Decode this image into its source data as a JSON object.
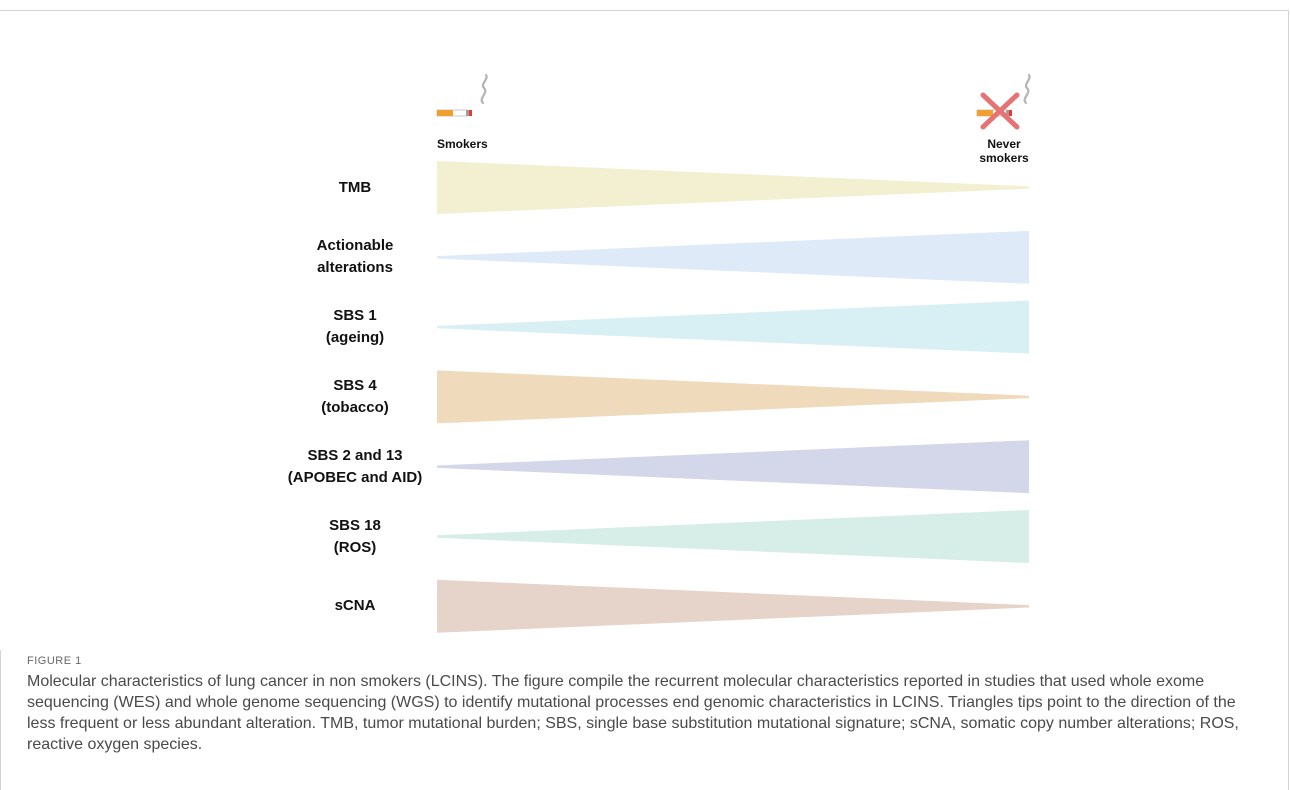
{
  "header": {
    "smokers_label": "Smokers",
    "never_label_line1": "Never",
    "never_label_line2": "smokers"
  },
  "rows": [
    {
      "line1": "TMB",
      "line2": "",
      "color": "#f3f0d2",
      "wide_side": "left"
    },
    {
      "line1": "Actionable",
      "line2": "alterations",
      "color": "#deeaf7",
      "wide_side": "right"
    },
    {
      "line1": "SBS 1",
      "line2": "(ageing)",
      "color": "#d8eff3",
      "wide_side": "right"
    },
    {
      "line1": "SBS 4",
      "line2": "(tobacco)",
      "color": "#efdabc",
      "wide_side": "left"
    },
    {
      "line1": "SBS 2 and 13",
      "line2": "(APOBEC and AID)",
      "color": "#d4d6ea",
      "wide_side": "right"
    },
    {
      "line1": "SBS 18",
      "line2": "(ROS)",
      "color": "#d6ede8",
      "wide_side": "right"
    },
    {
      "line1": "sCNA",
      "line2": "",
      "color": "#e6d3ca",
      "wide_side": "left"
    }
  ],
  "caption": {
    "figure_number": "FIGURE 1",
    "text": "Molecular characteristics of lung cancer in non smokers (LCINS). The figure compile the recurrent molecular characteristics reported in studies that used whole exome sequencing (WES) and whole genome sequencing (WGS) to identify mutational processes end genomic characteristics in LCINS. Triangles tips point to the direction of the less frequent or less abundant alteration. TMB, tumor mutational burden; SBS, single base substitution mutational signature; sCNA, somatic copy number alterations; ROS, reactive oxygen species."
  },
  "icons": {
    "smokers_icon": "cigarette-icon",
    "never_smokers_icon": "no-smoking-cigarette-icon"
  }
}
